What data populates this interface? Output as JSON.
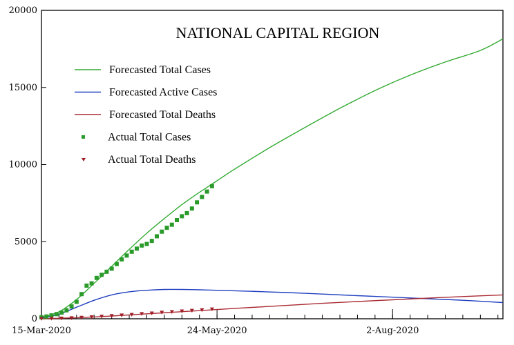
{
  "chart_data": {
    "type": "line",
    "title": "NATIONAL CAPITAL REGION",
    "xlabel": "",
    "ylabel": "",
    "xlim": [
      "2020-03-15",
      "2020-09-15"
    ],
    "ylim": [
      0,
      20000
    ],
    "y_ticks": [
      0,
      5000,
      10000,
      15000,
      20000
    ],
    "y_tick_labels": [
      "0",
      "5000",
      "10000",
      "15000",
      "20000"
    ],
    "x_tick_dates": [
      "2020-03-15",
      "2020-05-24",
      "2020-08-02"
    ],
    "x_tick_labels": [
      "15-Mar-2020",
      "24-May-2020",
      "2-Aug-2020"
    ],
    "grid": false,
    "legend_position": "top-left",
    "colors": {
      "forecast_total": "#33aa33",
      "forecast_active": "#1f3fbf",
      "forecast_deaths": "#aa2a33",
      "actual_total": "#2a9a2a",
      "actual_deaths": "#a01f28"
    },
    "series": [
      {
        "name": "Forecasted Total Cases",
        "kind": "line",
        "color_key": "forecast_total",
        "x": [
          "2020-03-15",
          "2020-03-22",
          "2020-03-29",
          "2020-04-05",
          "2020-04-12",
          "2020-04-19",
          "2020-04-26",
          "2020-05-03",
          "2020-05-10",
          "2020-05-17",
          "2020-05-24",
          "2020-05-31",
          "2020-06-14",
          "2020-06-28",
          "2020-07-12",
          "2020-07-26",
          "2020-08-09",
          "2020-08-23",
          "2020-09-06",
          "2020-09-15"
        ],
        "y": [
          100,
          450,
          1250,
          2300,
          3400,
          4500,
          5550,
          6500,
          7400,
          8200,
          8950,
          9700,
          11100,
          12400,
          13650,
          14800,
          15800,
          16650,
          17400,
          18150
        ]
      },
      {
        "name": "Forecasted Active Cases",
        "kind": "line",
        "color_key": "forecast_active",
        "x": [
          "2020-03-15",
          "2020-03-22",
          "2020-03-29",
          "2020-04-05",
          "2020-04-12",
          "2020-04-19",
          "2020-04-26",
          "2020-05-03",
          "2020-05-10",
          "2020-05-17",
          "2020-05-24",
          "2020-06-07",
          "2020-06-21",
          "2020-07-05",
          "2020-07-19",
          "2020-08-02",
          "2020-08-16",
          "2020-08-30",
          "2020-09-15"
        ],
        "y": [
          50,
          300,
          750,
          1200,
          1550,
          1750,
          1850,
          1900,
          1900,
          1880,
          1850,
          1780,
          1700,
          1600,
          1500,
          1400,
          1300,
          1200,
          1050
        ]
      },
      {
        "name": "Forecasted Total Deaths",
        "kind": "line",
        "color_key": "forecast_deaths",
        "x": [
          "2020-03-15",
          "2020-03-29",
          "2020-04-12",
          "2020-04-26",
          "2020-05-10",
          "2020-05-24",
          "2020-06-07",
          "2020-06-21",
          "2020-07-05",
          "2020-07-19",
          "2020-08-02",
          "2020-08-16",
          "2020-08-30",
          "2020-09-15"
        ],
        "y": [
          0,
          70,
          180,
          320,
          460,
          600,
          740,
          870,
          1000,
          1120,
          1230,
          1340,
          1440,
          1550
        ]
      },
      {
        "name": "Actual Total Cases",
        "kind": "scatter",
        "marker": "square",
        "color_key": "actual_total",
        "x": [
          "2020-03-15",
          "2020-03-17",
          "2020-03-19",
          "2020-03-21",
          "2020-03-23",
          "2020-03-25",
          "2020-03-27",
          "2020-03-29",
          "2020-03-31",
          "2020-04-02",
          "2020-04-04",
          "2020-04-06",
          "2020-04-08",
          "2020-04-10",
          "2020-04-12",
          "2020-04-14",
          "2020-04-16",
          "2020-04-18",
          "2020-04-20",
          "2020-04-22",
          "2020-04-24",
          "2020-04-26",
          "2020-04-28",
          "2020-04-30",
          "2020-05-02",
          "2020-05-04",
          "2020-05-06",
          "2020-05-08",
          "2020-05-10",
          "2020-05-12",
          "2020-05-14",
          "2020-05-16",
          "2020-05-18",
          "2020-05-20",
          "2020-05-22"
        ],
        "y": [
          100,
          150,
          220,
          300,
          400,
          550,
          800,
          1100,
          1600,
          2150,
          2300,
          2650,
          2850,
          3050,
          3250,
          3550,
          3850,
          4100,
          4350,
          4550,
          4750,
          4850,
          5050,
          5350,
          5650,
          5900,
          6100,
          6400,
          6650,
          6850,
          7150,
          7550,
          7900,
          8250,
          8600
        ]
      },
      {
        "name": "Actual Total Deaths",
        "kind": "scatter",
        "marker": "triangle-down",
        "color_key": "actual_deaths",
        "x": [
          "2020-03-15",
          "2020-03-19",
          "2020-03-23",
          "2020-03-27",
          "2020-03-31",
          "2020-04-04",
          "2020-04-08",
          "2020-04-12",
          "2020-04-16",
          "2020-04-20",
          "2020-04-24",
          "2020-04-28",
          "2020-05-02",
          "2020-05-06",
          "2020-05-10",
          "2020-05-14",
          "2020-05-18",
          "2020-05-22"
        ],
        "y": [
          5,
          15,
          30,
          50,
          80,
          110,
          150,
          190,
          230,
          270,
          320,
          360,
          410,
          450,
          490,
          530,
          570,
          620
        ]
      }
    ]
  }
}
